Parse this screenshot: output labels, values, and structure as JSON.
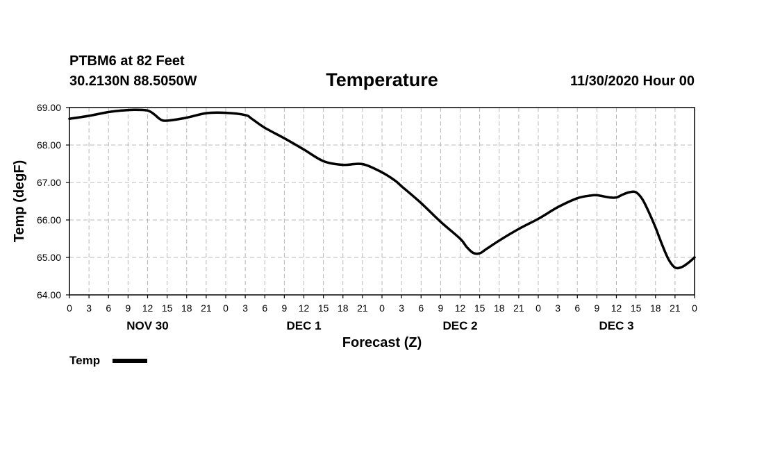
{
  "header": {
    "station": "PTBM6 at 82 Feet",
    "coords": "30.2130N 88.5050W",
    "date": "11/30/2020 Hour 00"
  },
  "chart_data": {
    "type": "line",
    "title": "Temperature",
    "xlabel": "Forecast (Z)",
    "ylabel": "Temp (degF)",
    "ylim": [
      64.0,
      69.0
    ],
    "y_ticks": [
      "64.00",
      "65.00",
      "66.00",
      "67.00",
      "68.00",
      "69.00"
    ],
    "xlim": [
      0,
      96
    ],
    "x_tick_labels": [
      "0",
      "3",
      "6",
      "9",
      "12",
      "15",
      "18",
      "21",
      "0",
      "3",
      "6",
      "9",
      "12",
      "15",
      "18",
      "21",
      "0",
      "3",
      "6",
      "9",
      "12",
      "15",
      "18",
      "21",
      "0",
      "3",
      "6",
      "9",
      "12",
      "15",
      "18",
      "21",
      "0"
    ],
    "day_labels": [
      {
        "label": "NOV 30",
        "hour": 12
      },
      {
        "label": "DEC 1",
        "hour": 36
      },
      {
        "label": "DEC 2",
        "hour": 60
      },
      {
        "label": "DEC 3",
        "hour": 84
      }
    ],
    "grid": true,
    "legend": "bottom-left",
    "series": [
      {
        "name": "Temp",
        "color": "#000000",
        "x": [
          0,
          3,
          6,
          8,
          10,
          12,
          13,
          14,
          15,
          18,
          21,
          24,
          27,
          28,
          30,
          33,
          36,
          39,
          42,
          45,
          48,
          50,
          51,
          54,
          57,
          60,
          61,
          62,
          63,
          64,
          66,
          69,
          72,
          75,
          78,
          80,
          81,
          83,
          84,
          85,
          86,
          87,
          88,
          89,
          90,
          91,
          92,
          93,
          94,
          95,
          96
        ],
        "values": [
          68.7,
          68.78,
          68.88,
          68.92,
          68.94,
          68.92,
          68.82,
          68.68,
          68.65,
          68.73,
          68.85,
          68.86,
          68.8,
          68.7,
          68.46,
          68.18,
          67.88,
          67.57,
          67.47,
          67.49,
          67.27,
          67.05,
          66.9,
          66.45,
          65.95,
          65.5,
          65.28,
          65.12,
          65.11,
          65.22,
          65.45,
          65.76,
          66.03,
          66.34,
          66.58,
          66.65,
          66.66,
          66.6,
          66.6,
          66.68,
          66.74,
          66.74,
          66.55,
          66.2,
          65.8,
          65.35,
          64.95,
          64.73,
          64.74,
          64.85,
          65.0
        ]
      }
    ]
  }
}
